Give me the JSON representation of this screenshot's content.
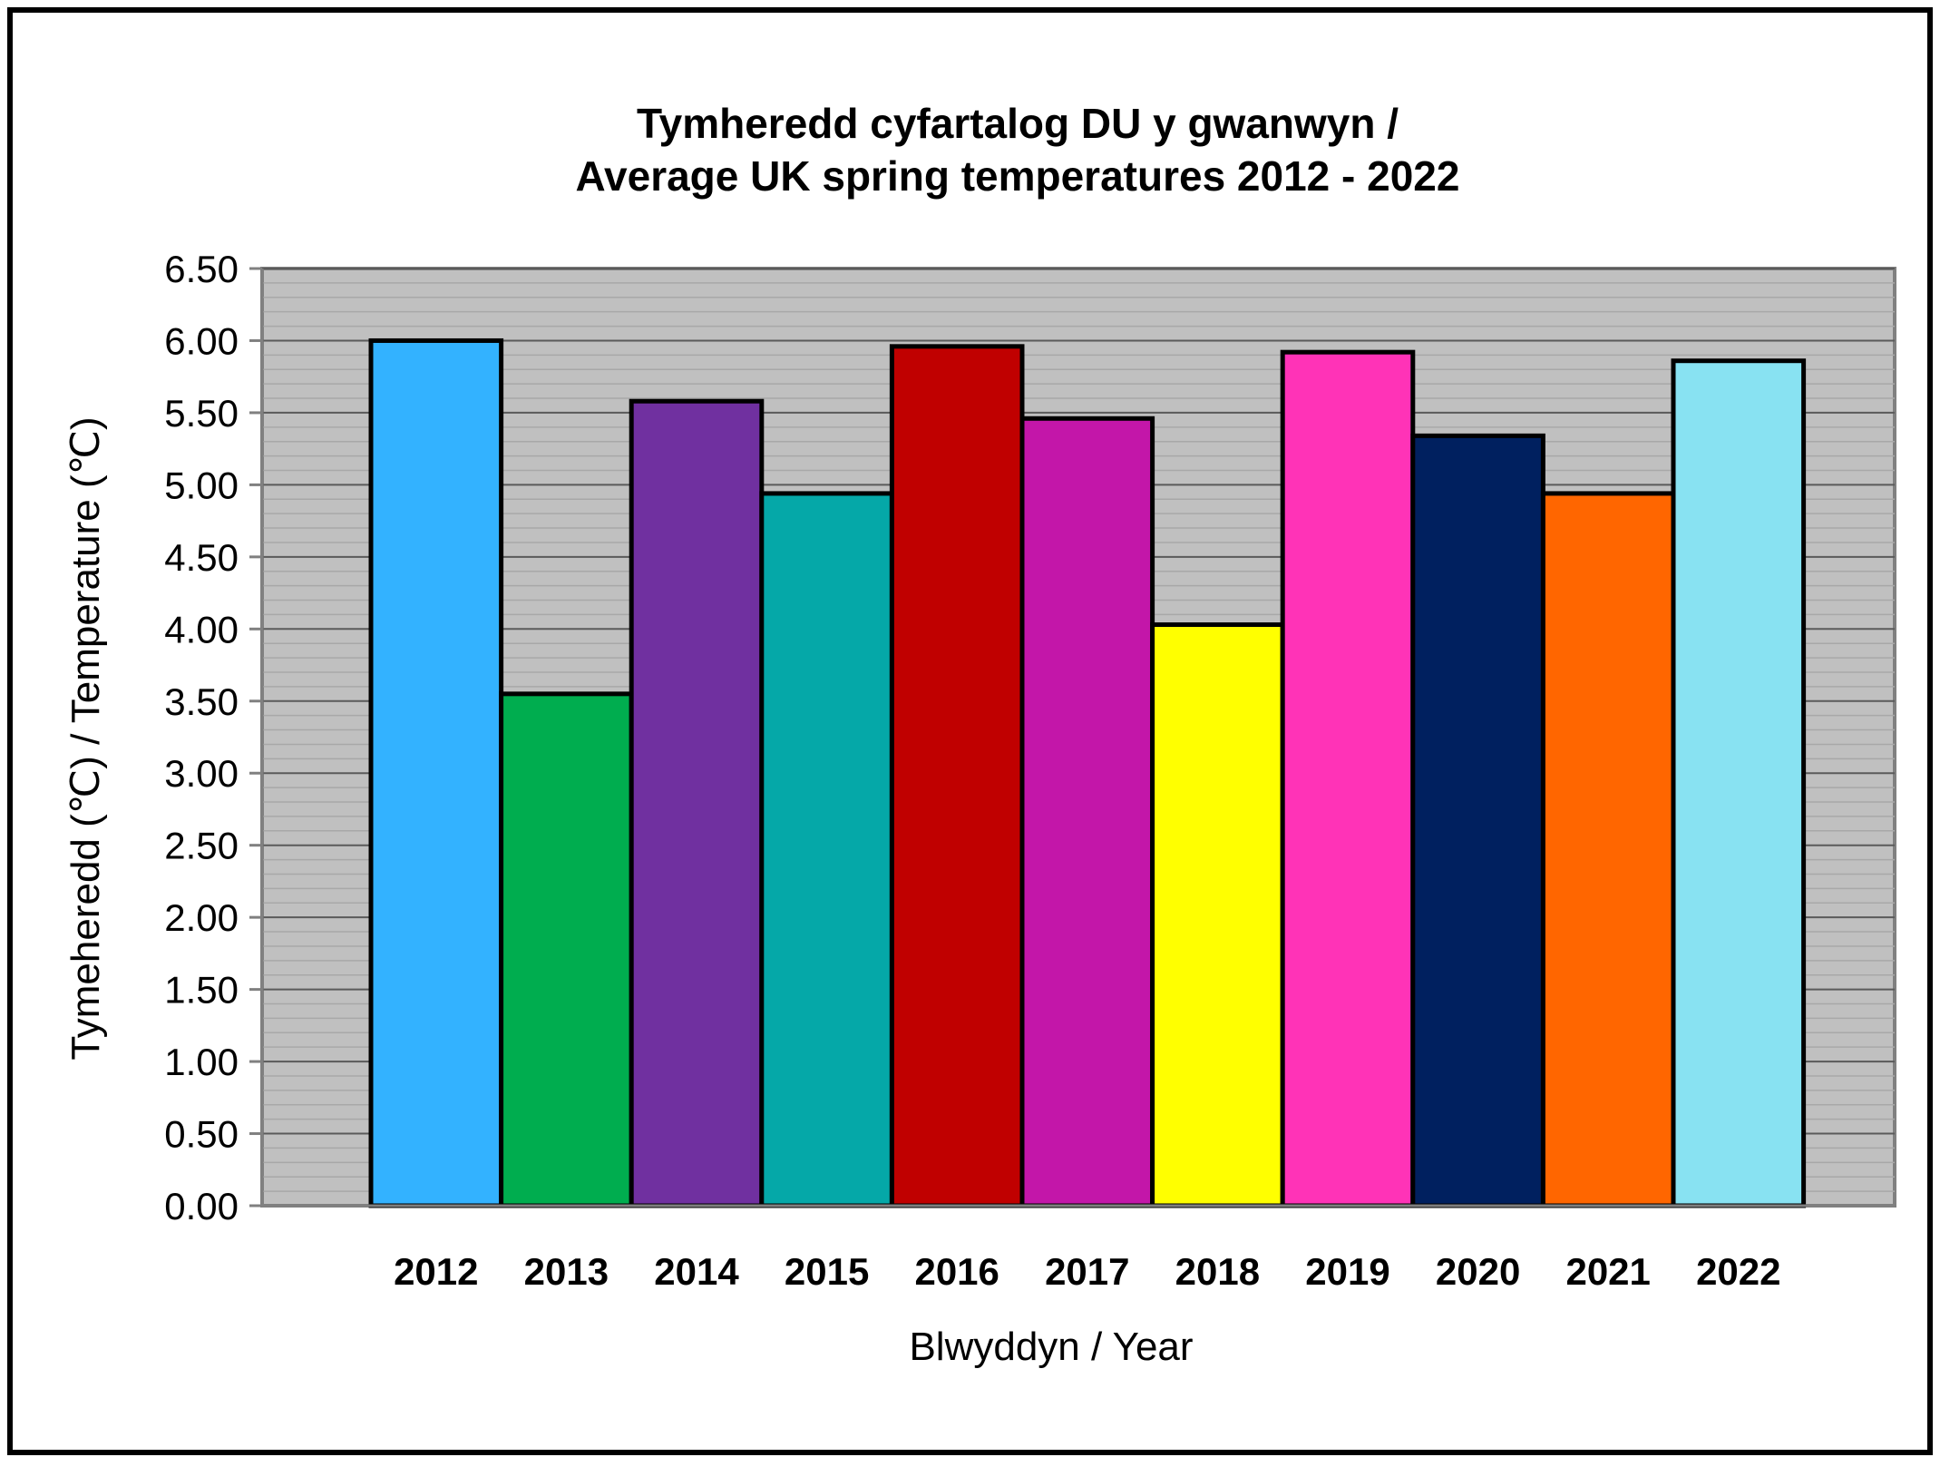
{
  "chart_data": {
    "type": "bar",
    "title_line1": "Tymheredd cyfartalog DU y gwanwyn /",
    "title_line2": "Average UK spring temperatures 2012 - 2022",
    "xlabel": "Blwyddyn / Year",
    "ylabel": "Tymeheredd  (℃) / Temperature (℃)",
    "categories": [
      "2012",
      "2013",
      "2014",
      "2015",
      "2016",
      "2017",
      "2018",
      "2019",
      "2020",
      "2021",
      "2022"
    ],
    "values": [
      6.0,
      3.55,
      5.58,
      4.94,
      5.96,
      5.46,
      4.03,
      5.92,
      5.34,
      4.94,
      5.86
    ],
    "colors": [
      "#33b2ff",
      "#00ad4f",
      "#7030a0",
      "#05a8a8",
      "#c00000",
      "#c316a9",
      "#ffff00",
      "#ff33b7",
      "#00205f",
      "#ff6600",
      "#88e2f2"
    ],
    "ylim": [
      0,
      6.5
    ],
    "yticks": [
      "0.00",
      "0.50",
      "1.00",
      "1.50",
      "2.00",
      "2.50",
      "3.00",
      "3.50",
      "4.00",
      "4.50",
      "5.00",
      "5.50",
      "6.00",
      "6.50"
    ],
    "plot_background": "#c0c0c0",
    "grid": true,
    "legend": "none"
  }
}
